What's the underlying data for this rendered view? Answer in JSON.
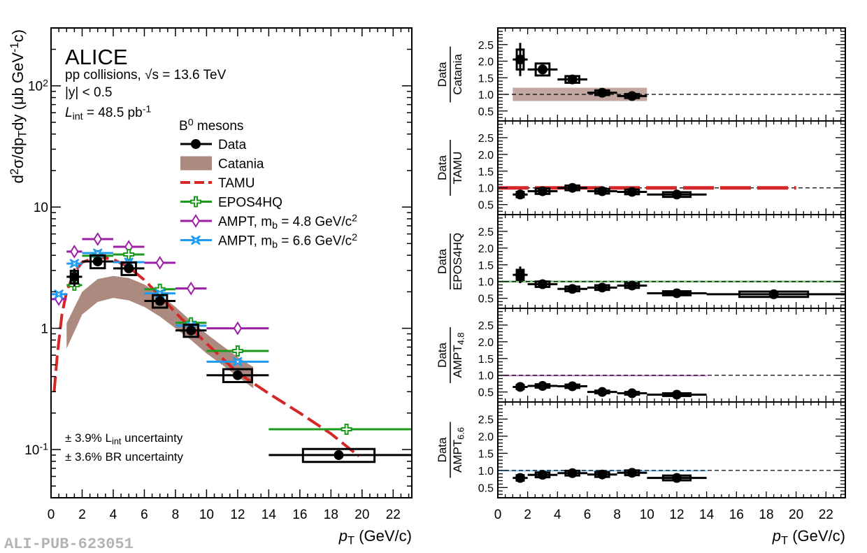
{
  "watermark": "ALI-PUB-623051",
  "colors": {
    "data": "#000000",
    "catania": "#ad8a80",
    "tamu": "#d62728",
    "epos4hq": "#1b9a1b",
    "ampt48": "#9b1fa6",
    "ampt66": "#1e9af0"
  },
  "chart_data": [
    {
      "type": "scatter",
      "panel": "spectrum",
      "xlabel": "p_{T} (GeV/c)",
      "ylabel": "d^{2}σ/dp_{T}dy (μb GeV^{-1}c)",
      "xlim": [
        0,
        23.2
      ],
      "ylim": [
        0.04,
        300
      ],
      "yscale": "log",
      "xticks": [
        "0",
        "2",
        "4",
        "6",
        "8",
        "10",
        "12",
        "14",
        "16",
        "18",
        "20",
        "22"
      ],
      "yticks": [
        {
          "value": 0.1,
          "label": "10^{-1}"
        },
        {
          "value": 1,
          "label": "1"
        },
        {
          "value": 10,
          "label": "10"
        },
        {
          "value": 100,
          "label": "10^{2}"
        }
      ],
      "annotations": {
        "experiment": "ALICE",
        "system": "pp collisions, √s = 13.6 TeV",
        "rapidity": "|y| < 0.5",
        "lumi": "L_{int} = 48.5 pb^{-1}",
        "lumi_unc": "± 3.9%  L_{int} uncertainty",
        "br_unc": "± 3.6% BR uncertainty"
      },
      "legend": {
        "placement": "top-right",
        "header": "B^{0} mesons",
        "entries": [
          "Data",
          "Catania",
          "TAMU",
          "EPOS4HQ",
          "AMPT, m_{b} = 4.8 GeV/c^{2}",
          "AMPT, m_{b} = 6.6 GeV/c^{2}"
        ]
      },
      "data": [
        {
          "x": 1.5,
          "xlo": 1,
          "xhi": 2,
          "y": 2.66,
          "stat": 0.45,
          "syst": 0.32
        },
        {
          "x": 3,
          "xlo": 2,
          "xhi": 4,
          "y": 3.56,
          "stat": 0.25,
          "syst": 0.43
        },
        {
          "x": 5,
          "xlo": 4,
          "xhi": 6,
          "y": 3.12,
          "stat": 0.2,
          "syst": 0.37
        },
        {
          "x": 7,
          "xlo": 6,
          "xhi": 8,
          "y": 1.68,
          "stat": 0.1,
          "syst": 0.2
        },
        {
          "x": 9,
          "xlo": 8,
          "xhi": 10,
          "y": 0.96,
          "stat": 0.06,
          "syst": 0.11
        },
        {
          "x": 12,
          "xlo": 10,
          "xhi": 14,
          "y": 0.41,
          "stat": 0.03,
          "syst": 0.05
        },
        {
          "x": 18.5,
          "xlo": 14,
          "xhi": 24,
          "y": 0.09,
          "stat": 0.008,
          "syst": 0.011
        }
      ],
      "catania": {
        "x": [
          1,
          2,
          3,
          4,
          5,
          6,
          7,
          8,
          9,
          10,
          11,
          12,
          13
        ],
        "upper": [
          1.1,
          2.0,
          2.55,
          2.7,
          2.6,
          2.3,
          1.9,
          1.5,
          1.15,
          0.9,
          0.72,
          0.58,
          0.48
        ],
        "lower": [
          0.68,
          1.3,
          1.65,
          1.78,
          1.7,
          1.5,
          1.25,
          1.0,
          0.8,
          0.62,
          0.5,
          0.4,
          0.32
        ]
      },
      "tamu": {
        "x": [
          0.2,
          0.4,
          0.7,
          1,
          1.5,
          2,
          3,
          4,
          5,
          6,
          7,
          8,
          9,
          10,
          12,
          14,
          16,
          18,
          19.8
        ],
        "y": [
          0.3,
          0.6,
          1.3,
          2.0,
          2.9,
          3.5,
          3.9,
          3.7,
          3.2,
          2.5,
          1.85,
          1.35,
          1.0,
          0.75,
          0.43,
          0.29,
          0.2,
          0.135,
          0.088
        ]
      },
      "epos4hq": [
        {
          "x": 1.5,
          "xlo": 1,
          "xhi": 2,
          "y": 2.27
        },
        {
          "x": 3,
          "xlo": 2,
          "xhi": 4,
          "y": 3.96
        },
        {
          "x": 5,
          "xlo": 4,
          "xhi": 6,
          "y": 4.06
        },
        {
          "x": 7,
          "xlo": 6,
          "xhi": 8,
          "y": 2.1
        },
        {
          "x": 9,
          "xlo": 8,
          "xhi": 10,
          "y": 1.11
        },
        {
          "x": 12,
          "xlo": 10,
          "xhi": 14,
          "y": 0.65
        },
        {
          "x": 19,
          "xlo": 14,
          "xhi": 24,
          "y": 0.147
        }
      ],
      "ampt48": [
        {
          "x": 0.5,
          "xlo": 0,
          "xhi": 1,
          "y": 1.74
        },
        {
          "x": 1.5,
          "xlo": 1,
          "xhi": 2,
          "y": 4.29
        },
        {
          "x": 3,
          "xlo": 2,
          "xhi": 4,
          "y": 5.44
        },
        {
          "x": 5,
          "xlo": 4,
          "xhi": 6,
          "y": 4.7
        },
        {
          "x": 7,
          "xlo": 6,
          "xhi": 8,
          "y": 3.47
        },
        {
          "x": 9,
          "xlo": 8,
          "xhi": 10,
          "y": 2.13
        },
        {
          "x": 12,
          "xlo": 10,
          "xhi": 14,
          "y": 1.0
        }
      ],
      "ampt66": [
        {
          "x": 0.5,
          "xlo": 0,
          "xhi": 1,
          "y": 1.91
        },
        {
          "x": 1.5,
          "xlo": 1,
          "xhi": 2,
          "y": 3.42
        },
        {
          "x": 3,
          "xlo": 2,
          "xhi": 4,
          "y": 4.17
        },
        {
          "x": 5,
          "xlo": 4,
          "xhi": 6,
          "y": 3.51
        },
        {
          "x": 7,
          "xlo": 6,
          "xhi": 8,
          "y": 1.94
        },
        {
          "x": 9,
          "xlo": 8,
          "xhi": 10,
          "y": 1.05
        },
        {
          "x": 12,
          "xlo": 10,
          "xhi": 14,
          "y": 0.53
        }
      ]
    },
    {
      "type": "scatter",
      "panel": "ratio",
      "ylabel_top": "Data",
      "ylabel_bottom": "Catania",
      "ylim": [
        0.2,
        3.0
      ],
      "yticks": [
        "0.5",
        "1.0",
        "1.5",
        "2.0",
        "2.5"
      ],
      "reference": 1,
      "model": {
        "kind": "band",
        "color_key": "catania",
        "xlo": 1,
        "xhi": 10,
        "ylo": 0.8,
        "yhi": 1.2
      },
      "points": [
        {
          "x": 1.5,
          "xlo": 1,
          "xhi": 2,
          "y": 2.05,
          "stat": 0.5,
          "syst": 0.3
        },
        {
          "x": 3,
          "xlo": 2,
          "xhi": 4,
          "y": 1.75,
          "stat": 0.08,
          "syst": 0.18
        },
        {
          "x": 5,
          "xlo": 4,
          "xhi": 6,
          "y": 1.45,
          "stat": 0.06,
          "syst": 0.1
        },
        {
          "x": 7,
          "xlo": 6,
          "xhi": 8,
          "y": 1.05,
          "stat": 0.05,
          "syst": 0.07
        },
        {
          "x": 9,
          "xlo": 8,
          "xhi": 10,
          "y": 0.95,
          "stat": 0.05,
          "syst": 0.06
        }
      ]
    },
    {
      "type": "scatter",
      "panel": "ratio",
      "ylabel_top": "Data",
      "ylabel_bottom": "TAMU",
      "ylim": [
        0.2,
        3.0
      ],
      "yticks": [
        "0.5",
        "1.0",
        "1.5",
        "2.0",
        "2.5"
      ],
      "reference": 1,
      "model": {
        "kind": "dashed",
        "color_key": "tamu",
        "xlo": 0,
        "xhi": 20,
        "ylo": 1.0,
        "yhi": 1.0
      },
      "points": [
        {
          "x": 1.5,
          "xlo": 1,
          "xhi": 2,
          "y": 0.8,
          "stat": 0.12,
          "syst": 0.08
        },
        {
          "x": 3,
          "xlo": 2,
          "xhi": 4,
          "y": 0.9,
          "stat": 0.06,
          "syst": 0.08
        },
        {
          "x": 5,
          "xlo": 4,
          "xhi": 6,
          "y": 1.0,
          "stat": 0.05,
          "syst": 0.07
        },
        {
          "x": 7,
          "xlo": 6,
          "xhi": 8,
          "y": 0.9,
          "stat": 0.05,
          "syst": 0.07
        },
        {
          "x": 9,
          "xlo": 8,
          "xhi": 10,
          "y": 0.88,
          "stat": 0.05,
          "syst": 0.07
        },
        {
          "x": 12,
          "xlo": 10,
          "xhi": 14,
          "y": 0.8,
          "stat": 0.04,
          "syst": 0.07
        }
      ]
    },
    {
      "type": "scatter",
      "panel": "ratio",
      "ylabel_top": "Data",
      "ylabel_bottom": "EPOS4HQ",
      "ylim": [
        0.2,
        3.0
      ],
      "yticks": [
        "0.5",
        "1.0",
        "1.5",
        "2.0",
        "2.5"
      ],
      "reference": 1,
      "model": {
        "kind": "band",
        "color_key": "epos4hq",
        "xlo": 0,
        "xhi": 24,
        "ylo": 0.97,
        "yhi": 1.03
      },
      "points": [
        {
          "x": 1.5,
          "xlo": 1,
          "xhi": 2,
          "y": 1.2,
          "stat": 0.25,
          "syst": 0.15
        },
        {
          "x": 3,
          "xlo": 2,
          "xhi": 4,
          "y": 0.92,
          "stat": 0.06,
          "syst": 0.08
        },
        {
          "x": 5,
          "xlo": 4,
          "xhi": 6,
          "y": 0.78,
          "stat": 0.05,
          "syst": 0.07
        },
        {
          "x": 7,
          "xlo": 6,
          "xhi": 8,
          "y": 0.82,
          "stat": 0.05,
          "syst": 0.07
        },
        {
          "x": 9,
          "xlo": 8,
          "xhi": 10,
          "y": 0.88,
          "stat": 0.05,
          "syst": 0.07
        },
        {
          "x": 12,
          "xlo": 10,
          "xhi": 14,
          "y": 0.65,
          "stat": 0.04,
          "syst": 0.06
        },
        {
          "x": 18.5,
          "xlo": 14,
          "xhi": 24,
          "y": 0.62,
          "stat": 0.05,
          "syst": 0.08
        }
      ]
    },
    {
      "type": "scatter",
      "panel": "ratio",
      "ylabel_top": "Data",
      "ylabel_bottom": "AMPT_{4.8}",
      "ylim": [
        0.2,
        3.0
      ],
      "yticks": [
        "0.5",
        "1.0",
        "1.5",
        "2.0",
        "2.5"
      ],
      "reference": 1,
      "model": {
        "kind": "band",
        "color_key": "ampt48",
        "xlo": 0,
        "xhi": 14,
        "ylo": 0.99,
        "yhi": 1.01
      },
      "points": [
        {
          "x": 1.5,
          "xlo": 1,
          "xhi": 2,
          "y": 0.65,
          "stat": 0.06,
          "syst": 0.06
        },
        {
          "x": 3,
          "xlo": 2,
          "xhi": 4,
          "y": 0.68,
          "stat": 0.05,
          "syst": 0.05
        },
        {
          "x": 5,
          "xlo": 4,
          "xhi": 6,
          "y": 0.67,
          "stat": 0.05,
          "syst": 0.05
        },
        {
          "x": 7,
          "xlo": 6,
          "xhi": 8,
          "y": 0.5,
          "stat": 0.04,
          "syst": 0.04
        },
        {
          "x": 9,
          "xlo": 8,
          "xhi": 10,
          "y": 0.46,
          "stat": 0.04,
          "syst": 0.04
        },
        {
          "x": 12,
          "xlo": 10,
          "xhi": 14,
          "y": 0.42,
          "stat": 0.03,
          "syst": 0.04
        }
      ]
    },
    {
      "type": "scatter",
      "panel": "ratio",
      "ylabel_top": "Data",
      "ylabel_bottom": "AMPT_{6.6}",
      "ylim": [
        0.2,
        3.0
      ],
      "yticks": [
        "0.5",
        "1.0",
        "1.5",
        "2.0",
        "2.5"
      ],
      "reference": 1,
      "model": {
        "kind": "band",
        "color_key": "ampt66",
        "xlo": 0,
        "xhi": 14,
        "ylo": 0.99,
        "yhi": 1.01
      },
      "xlabel": "p_{T} (GeV/c)",
      "xticks": [
        "0",
        "2",
        "4",
        "6",
        "8",
        "10",
        "12",
        "14",
        "16",
        "18",
        "20",
        "22"
      ],
      "points": [
        {
          "x": 1.5,
          "xlo": 1,
          "xhi": 2,
          "y": 0.78,
          "stat": 0.12,
          "syst": 0.08
        },
        {
          "x": 3,
          "xlo": 2,
          "xhi": 4,
          "y": 0.87,
          "stat": 0.06,
          "syst": 0.07
        },
        {
          "x": 5,
          "xlo": 4,
          "xhi": 6,
          "y": 0.92,
          "stat": 0.05,
          "syst": 0.07
        },
        {
          "x": 7,
          "xlo": 6,
          "xhi": 8,
          "y": 0.88,
          "stat": 0.05,
          "syst": 0.07
        },
        {
          "x": 9,
          "xlo": 8,
          "xhi": 10,
          "y": 0.93,
          "stat": 0.05,
          "syst": 0.07
        },
        {
          "x": 12,
          "xlo": 10,
          "xhi": 14,
          "y": 0.78,
          "stat": 0.04,
          "syst": 0.07
        }
      ]
    }
  ]
}
